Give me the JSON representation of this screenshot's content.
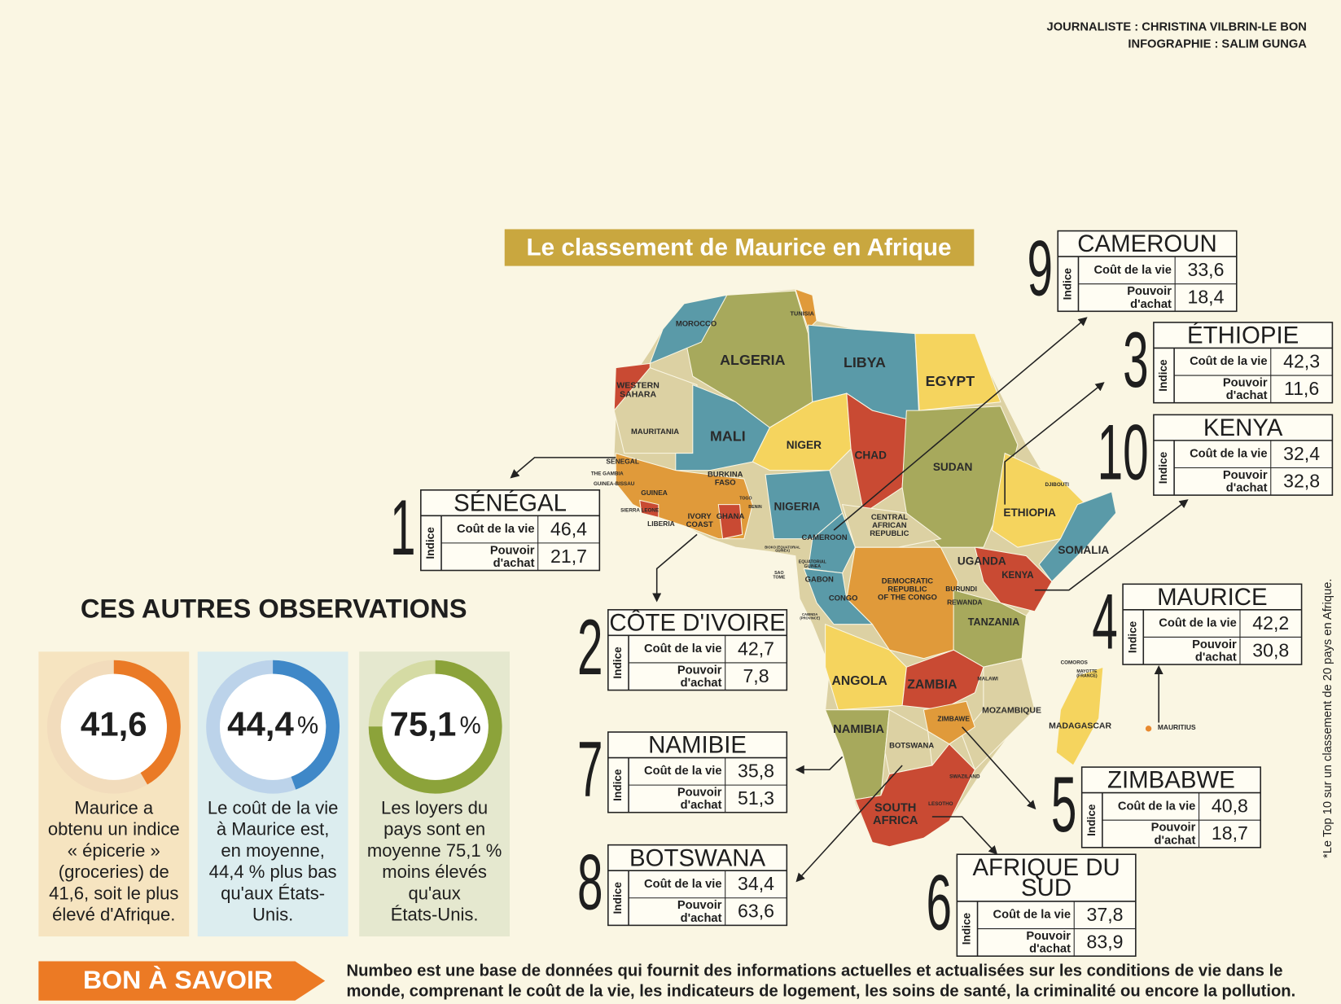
{
  "credits": [
    "JOURNALISTE : CHRISTINA VILBRIN-LE BON",
    "INFOGRAPHIE : SALIM GUNGA"
  ],
  "title": "Le classement de Maurice en Afrique",
  "rankings": [
    {
      "rank": "1",
      "name": [
        "SÉNÉGAL"
      ],
      "index_label": "Indice",
      "rows": [
        {
          "label": [
            "Coût de la vie"
          ],
          "value": "46,4"
        },
        {
          "label": [
            "Pouvoir",
            "d'achat"
          ],
          "value": "21,7"
        }
      ]
    },
    {
      "rank": "2",
      "name": [
        "CÔTE D'IVOIRE"
      ],
      "index_label": "Indice",
      "rows": [
        {
          "label": [
            "Coût de la vie"
          ],
          "value": "42,7"
        },
        {
          "label": [
            "Pouvoir",
            "d'achat"
          ],
          "value": "7,8"
        }
      ]
    },
    {
      "rank": "3",
      "name": [
        "ÉTHIOPIE"
      ],
      "index_label": "Indice",
      "rows": [
        {
          "label": [
            "Coût de la vie"
          ],
          "value": "42,3"
        },
        {
          "label": [
            "Pouvoir",
            "d'achat"
          ],
          "value": "11,6"
        }
      ]
    },
    {
      "rank": "4",
      "name": [
        "MAURICE"
      ],
      "index_label": "Indice",
      "rows": [
        {
          "label": [
            "Coût de la vie"
          ],
          "value": "42,2"
        },
        {
          "label": [
            "Pouvoir",
            "d'achat"
          ],
          "value": "30,8"
        }
      ]
    },
    {
      "rank": "5",
      "name": [
        "ZIMBABWE"
      ],
      "index_label": "Indice",
      "rows": [
        {
          "label": [
            "Coût de la vie"
          ],
          "value": "40,8"
        },
        {
          "label": [
            "Pouvoir",
            "d'achat"
          ],
          "value": "18,7"
        }
      ]
    },
    {
      "rank": "6",
      "name": [
        "AFRIQUE DU",
        "SUD"
      ],
      "index_label": "Indice",
      "rows": [
        {
          "label": [
            "Coût de la vie"
          ],
          "value": "37,8"
        },
        {
          "label": [
            "Pouvoir",
            "d'achat"
          ],
          "value": "83,9"
        }
      ]
    },
    {
      "rank": "7",
      "name": [
        "NAMIBIE"
      ],
      "index_label": "Indice",
      "rows": [
        {
          "label": [
            "Coût de la vie"
          ],
          "value": "35,8"
        },
        {
          "label": [
            "Pouvoir",
            "d'achat"
          ],
          "value": "51,3"
        }
      ]
    },
    {
      "rank": "8",
      "name": [
        "BOTSWANA"
      ],
      "index_label": "Indice",
      "rows": [
        {
          "label": [
            "Coût de la vie"
          ],
          "value": "34,4"
        },
        {
          "label": [
            "Pouvoir",
            "d'achat"
          ],
          "value": "63,6"
        }
      ]
    },
    {
      "rank": "9",
      "name": [
        "CAMEROUN"
      ],
      "index_label": "Indice",
      "rows": [
        {
          "label": [
            "Coût de la vie"
          ],
          "value": "33,6"
        },
        {
          "label": [
            "Pouvoir",
            "d'achat"
          ],
          "value": "18,4"
        }
      ]
    },
    {
      "rank": "10",
      "name": [
        "KENYA"
      ],
      "index_label": "Indice",
      "rows": [
        {
          "label": [
            "Coût de la vie"
          ],
          "value": "32,4"
        },
        {
          "label": [
            "Pouvoir",
            "d'achat"
          ],
          "value": "32,8"
        }
      ]
    }
  ],
  "map_labels": [
    [
      "MOROCCO"
    ],
    [
      "TUNISIA"
    ],
    [
      "ALGERIA"
    ],
    [
      "LIBYA"
    ],
    [
      "EGYPT"
    ],
    [
      "WESTERN",
      "SAHARA"
    ],
    [
      "MAURITANIA"
    ],
    [
      "MALI"
    ],
    [
      "NIGER"
    ],
    [
      "CHAD"
    ],
    [
      "SUDAN"
    ],
    [
      "SENEGAL"
    ],
    [
      "THE GAMBIA"
    ],
    [
      "GUINEA-BISSAU"
    ],
    [
      "GUINEA"
    ],
    [
      "SIERRA LEONE"
    ],
    [
      "LIBERIA"
    ],
    [
      "BURKINA",
      "FASO"
    ],
    [
      "IVORY",
      "COAST"
    ],
    [
      "GHANA"
    ],
    [
      "TOGO"
    ],
    [
      "BENIN"
    ],
    [
      "NIGERIA"
    ],
    [
      "CAMEROON"
    ],
    [
      "CENTRAL",
      "AFRICAN",
      "REPUBLIC"
    ],
    [
      "DJIBOUTI"
    ],
    [
      "ETHIOPIA"
    ],
    [
      "SOMALIA"
    ],
    [
      "UGANDA"
    ],
    [
      "KENYA"
    ],
    [
      "DEMOCRATIC",
      "REPUBLIC",
      "OF THE CONGO"
    ],
    [
      "BURUNDI"
    ],
    [
      "REWANDA"
    ],
    [
      "TANZANIA"
    ],
    [
      "GABON"
    ],
    [
      "CONGO"
    ],
    [
      "ANGOLA"
    ],
    [
      "ZAMBIA"
    ],
    [
      "MALAWI"
    ],
    [
      "MOZAMBIQUE"
    ],
    [
      "ZIMBAWE"
    ],
    [
      "NAMIBIA"
    ],
    [
      "BOTSWANA"
    ],
    [
      "SWAZILAND"
    ],
    [
      "LESOTHO"
    ],
    [
      "SOUTH",
      "AFRICA"
    ],
    [
      "MADAGASCAR"
    ],
    [
      "COMOROS"
    ],
    [
      "MAYOTTE",
      "(FRANCE)"
    ],
    [
      "MAURITIUS"
    ],
    [
      "EQUATORIAL",
      "GUINEA"
    ],
    [
      "SAO",
      "TOME"
    ],
    [
      "BIOKO (EQUATORIAL",
      "GUINEA)"
    ],
    [
      "CABINDA",
      "(PROVINCE)"
    ]
  ],
  "observations": {
    "heading": "CES AUTRES OBSERVATIONS",
    "items": [
      {
        "value": 41.6,
        "label": "41,6",
        "text": [
          "Maurice a",
          "obtenu un indice",
          "« épicerie »",
          "(groceries) de",
          "41,6, soit le plus",
          "élevé d'Afrique."
        ]
      },
      {
        "value": 44.4,
        "label": "44,4",
        "unit": "%",
        "text": [
          "Le coût de la vie",
          "à Maurice est,",
          "en moyenne,",
          "44,4 % plus bas",
          "qu'aux États-",
          "Unis."
        ]
      },
      {
        "value": 75.1,
        "label": "75,1",
        "unit": "%",
        "text": [
          "Les loyers du",
          "pays sont en",
          "moyenne 75,1 %",
          "moins élevés",
          "qu'aux",
          "États-Unis."
        ]
      }
    ]
  },
  "bon_a_savoir": {
    "label": "BON À SAVOIR",
    "text": [
      "Numbeo est une base de données qui fournit des informations actuelles et actualisées sur les conditions de vie dans le",
      "monde, comprenant le coût de la vie, les indicateurs de logement, les soins de santé, la criminalité ou encore la pollution."
    ]
  },
  "footnote": "*Le Top 10 sur un classement de 20 pays en Afrique."
}
